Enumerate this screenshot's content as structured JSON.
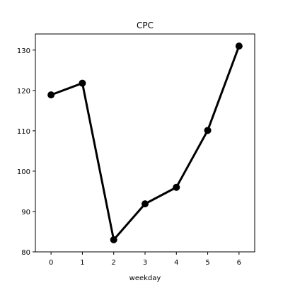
{
  "chart_data": {
    "type": "line",
    "title": "CPC",
    "xlabel": "weekday",
    "ylabel": "",
    "x": [
      0,
      1,
      2,
      3,
      4,
      5,
      6
    ],
    "series": [
      {
        "values": [
          118.9,
          121.8,
          83.0,
          91.9,
          96.0,
          110.1,
          131.0
        ]
      }
    ],
    "xlim": [
      -0.5,
      6.5
    ],
    "ylim": [
      80,
      134
    ],
    "x_ticks": [
      0,
      1,
      2,
      3,
      4,
      5,
      6
    ],
    "y_ticks": [
      80,
      90,
      100,
      110,
      120,
      130
    ],
    "grid": false,
    "legend": "none",
    "line_color": "#000000",
    "marker_color": "#000000"
  }
}
